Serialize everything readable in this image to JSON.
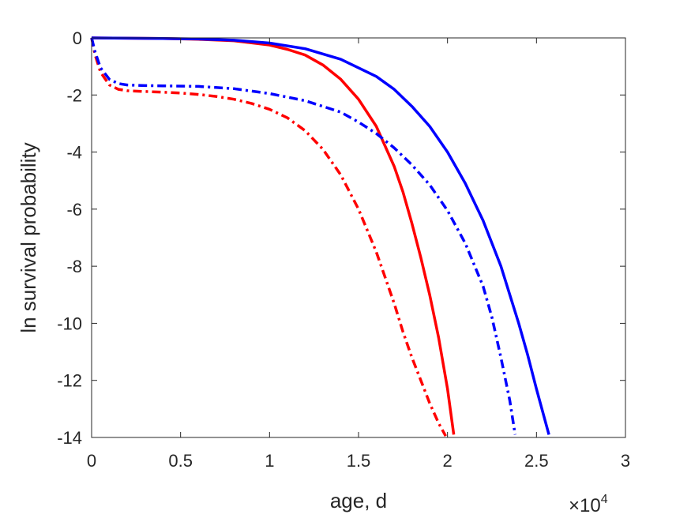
{
  "chart_data": {
    "type": "line",
    "xlabel": "age, d",
    "ylabel": "ln survival probability",
    "x_multiplier": {
      "base": "×10",
      "exponent": "4"
    },
    "xlim": [
      0,
      30000
    ],
    "ylim": [
      -14,
      0
    ],
    "x_ticks": [
      {
        "value": 0,
        "label": "0"
      },
      {
        "value": 5000,
        "label": "0.5"
      },
      {
        "value": 10000,
        "label": "1"
      },
      {
        "value": 15000,
        "label": "1.5"
      },
      {
        "value": 20000,
        "label": "2"
      },
      {
        "value": 25000,
        "label": "2.5"
      },
      {
        "value": 30000,
        "label": "3"
      }
    ],
    "y_ticks": [
      {
        "value": 0,
        "label": "0"
      },
      {
        "value": -2,
        "label": "-2"
      },
      {
        "value": -4,
        "label": "-4"
      },
      {
        "value": -6,
        "label": "-6"
      },
      {
        "value": -8,
        "label": "-8"
      },
      {
        "value": -10,
        "label": "-10"
      },
      {
        "value": -12,
        "label": "-12"
      },
      {
        "value": -14,
        "label": "-14"
      }
    ],
    "grid": false,
    "legend": "none",
    "series": [
      {
        "color": "#ff0000",
        "style": "solid",
        "x": [
          0,
          2000,
          4000,
          6000,
          8000,
          10000,
          11000,
          12000,
          13000,
          14000,
          15000,
          16000,
          17000,
          17500,
          18000,
          18500,
          19000,
          19500,
          20000,
          20350
        ],
        "y": [
          0,
          -0.01,
          -0.02,
          -0.05,
          -0.1,
          -0.25,
          -0.4,
          -0.6,
          -0.95,
          -1.45,
          -2.15,
          -3.1,
          -4.5,
          -5.4,
          -6.5,
          -7.7,
          -9.0,
          -10.5,
          -12.3,
          -13.9
        ]
      },
      {
        "color": "#0000ff",
        "style": "solid",
        "x": [
          0,
          2000,
          4000,
          6000,
          8000,
          10000,
          12000,
          14000,
          16000,
          17000,
          18000,
          19000,
          20000,
          21000,
          22000,
          23000,
          24000,
          24500,
          25000,
          25700
        ],
        "y": [
          0,
          -0.01,
          -0.02,
          -0.04,
          -0.08,
          -0.18,
          -0.38,
          -0.75,
          -1.35,
          -1.8,
          -2.4,
          -3.1,
          -4.0,
          -5.1,
          -6.4,
          -8.0,
          -10.0,
          -11.1,
          -12.3,
          -13.9
        ]
      },
      {
        "color": "#ff0000",
        "style": "dashdot",
        "x": [
          0,
          200,
          500,
          1000,
          1500,
          2000,
          3000,
          4000,
          5000,
          6000,
          7000,
          8000,
          9000,
          10000,
          11000,
          12000,
          13000,
          14000,
          15000,
          16000,
          17000,
          17500,
          18000,
          18500,
          19000,
          19500,
          19900
        ],
        "y": [
          0,
          -0.6,
          -1.2,
          -1.65,
          -1.8,
          -1.85,
          -1.88,
          -1.9,
          -1.93,
          -1.98,
          -2.05,
          -2.15,
          -2.3,
          -2.5,
          -2.8,
          -3.25,
          -3.9,
          -4.8,
          -6.0,
          -7.5,
          -9.3,
          -10.3,
          -11.2,
          -12.0,
          -12.8,
          -13.5,
          -13.95
        ]
      },
      {
        "color": "#0000ff",
        "style": "dashdot",
        "x": [
          0,
          200,
          500,
          1000,
          1500,
          2000,
          3000,
          4000,
          6000,
          8000,
          10000,
          12000,
          14000,
          15000,
          16000,
          17000,
          18000,
          19000,
          20000,
          21000,
          22000,
          22500,
          23000,
          23500,
          23800
        ],
        "y": [
          0,
          -0.5,
          -1.05,
          -1.45,
          -1.6,
          -1.65,
          -1.67,
          -1.68,
          -1.7,
          -1.78,
          -1.95,
          -2.2,
          -2.6,
          -2.95,
          -3.35,
          -3.85,
          -4.45,
          -5.15,
          -6.05,
          -7.2,
          -8.7,
          -9.8,
          -11.2,
          -12.7,
          -13.9
        ]
      }
    ]
  }
}
